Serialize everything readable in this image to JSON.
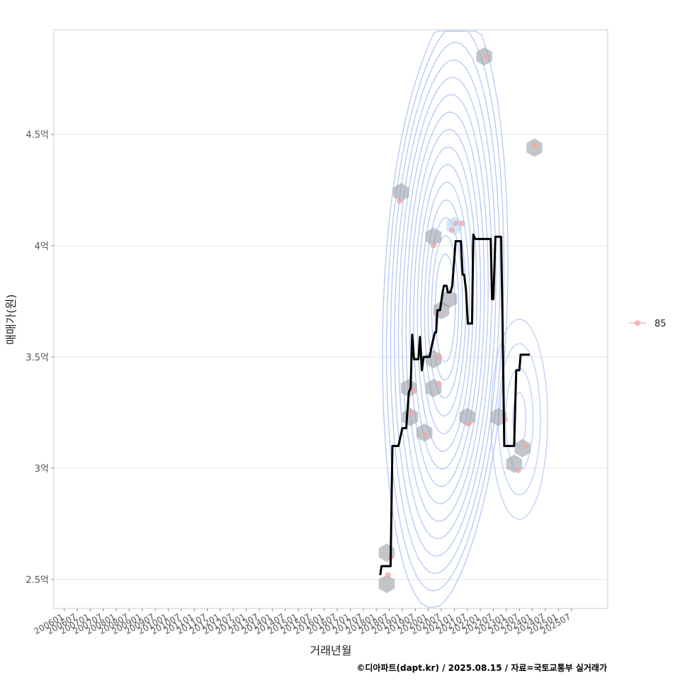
{
  "chart_data": {
    "type": "line",
    "title": "",
    "xlabel": "거래년월",
    "ylabel": "매매가(원)",
    "caption": "©디아파트(dapt.kr) / 2025.08.15 / 자료=국토교통부 실거래가",
    "xlim": [
      2005.6,
      2026.9
    ],
    "ylim": [
      2.37,
      4.97
    ],
    "x_tick_labels": [
      "200601",
      "200607",
      "200701",
      "200707",
      "200801",
      "200807",
      "200901",
      "200907",
      "201001",
      "201007",
      "201101",
      "201107",
      "201201",
      "201207",
      "201301",
      "201307",
      "201401",
      "201407",
      "201501",
      "201507",
      "201601",
      "201607",
      "201701",
      "201707",
      "201801",
      "201807",
      "201901",
      "201907",
      "202001",
      "202007",
      "202101",
      "202107",
      "202201",
      "202207",
      "202301",
      "202307",
      "202401",
      "202407",
      "202501",
      "202507"
    ],
    "y_ticks": [
      {
        "value": 2.5,
        "label": "2.5억"
      },
      {
        "value": 3.0,
        "label": "3억"
      },
      {
        "value": 3.5,
        "label": "3.5억"
      },
      {
        "value": 4.0,
        "label": "4억"
      },
      {
        "value": 4.5,
        "label": "4.5억"
      }
    ],
    "legend": {
      "position": "right",
      "entries": [
        {
          "name": "85",
          "color": "#f4a6a6"
        }
      ]
    },
    "colors": {
      "line": "#000000",
      "points": "#f4a6a6",
      "contour": "#a9bdf2",
      "hexbin": "#9aa0a8",
      "hex_highlight": "#b8dcf8",
      "grid": "#e4e4e4",
      "panel_border": "#cccccc"
    },
    "series": [
      {
        "name": "85 moving average",
        "type": "line",
        "points": [
          [
            2018.15,
            2.52
          ],
          [
            2018.2,
            2.56
          ],
          [
            2018.3,
            2.56
          ],
          [
            2018.45,
            2.56
          ],
          [
            2018.55,
            2.56
          ],
          [
            2018.62,
            3.1
          ],
          [
            2018.7,
            3.1
          ],
          [
            2018.85,
            3.1
          ],
          [
            2019.0,
            3.18
          ],
          [
            2019.15,
            3.18
          ],
          [
            2019.25,
            3.34
          ],
          [
            2019.32,
            3.36
          ],
          [
            2019.38,
            3.6
          ],
          [
            2019.45,
            3.49
          ],
          [
            2019.55,
            3.49
          ],
          [
            2019.62,
            3.49
          ],
          [
            2019.68,
            3.59
          ],
          [
            2019.75,
            3.44
          ],
          [
            2019.82,
            3.5
          ],
          [
            2019.9,
            3.5
          ],
          [
            2020.05,
            3.5
          ],
          [
            2020.15,
            3.56
          ],
          [
            2020.25,
            3.61
          ],
          [
            2020.3,
            3.61
          ],
          [
            2020.35,
            3.71
          ],
          [
            2020.45,
            3.71
          ],
          [
            2020.55,
            3.79
          ],
          [
            2020.6,
            3.82
          ],
          [
            2020.7,
            3.82
          ],
          [
            2020.75,
            3.79
          ],
          [
            2020.85,
            3.79
          ],
          [
            2020.92,
            3.82
          ],
          [
            2021.05,
            4.02
          ],
          [
            2021.15,
            4.02
          ],
          [
            2021.25,
            4.02
          ],
          [
            2021.32,
            3.87
          ],
          [
            2021.38,
            3.87
          ],
          [
            2021.45,
            3.8
          ],
          [
            2021.52,
            3.65
          ],
          [
            2021.6,
            3.65
          ],
          [
            2021.68,
            3.65
          ],
          [
            2021.73,
            4.05
          ],
          [
            2021.8,
            4.03
          ],
          [
            2022.0,
            4.03
          ],
          [
            2022.2,
            4.03
          ],
          [
            2022.4,
            4.03
          ],
          [
            2022.45,
            3.76
          ],
          [
            2022.5,
            3.76
          ],
          [
            2022.58,
            4.04
          ],
          [
            2022.7,
            4.04
          ],
          [
            2022.8,
            4.04
          ],
          [
            2022.85,
            3.7
          ],
          [
            2022.92,
            3.1
          ],
          [
            2023.05,
            3.1
          ],
          [
            2023.2,
            3.1
          ],
          [
            2023.3,
            3.1
          ],
          [
            2023.38,
            3.44
          ],
          [
            2023.5,
            3.44
          ],
          [
            2023.55,
            3.51
          ],
          [
            2023.7,
            3.51
          ],
          [
            2023.9,
            3.51
          ]
        ]
      },
      {
        "name": "85",
        "type": "scatter",
        "points": [
          [
            2018.45,
            2.52
          ],
          [
            2018.55,
            2.6
          ],
          [
            2018.9,
            4.2
          ],
          [
            2019.45,
            3.35
          ],
          [
            2019.35,
            3.25
          ],
          [
            2019.9,
            3.15
          ],
          [
            2020.2,
            4.0
          ],
          [
            2020.35,
            3.7
          ],
          [
            2020.4,
            3.5
          ],
          [
            2020.4,
            3.38
          ],
          [
            2020.9,
            4.07
          ],
          [
            2021.05,
            4.1
          ],
          [
            2021.3,
            4.1
          ],
          [
            2021.55,
            3.2
          ],
          [
            2022.2,
            4.85
          ],
          [
            2022.95,
            3.22
          ],
          [
            2023.45,
            2.99
          ],
          [
            2023.75,
            3.1
          ],
          [
            2024.1,
            4.45
          ]
        ]
      },
      {
        "name": "hexbin",
        "type": "hexbin",
        "points": [
          [
            2018.4,
            2.48
          ],
          [
            2018.4,
            2.62
          ],
          [
            2018.95,
            4.24
          ],
          [
            2019.25,
            3.36
          ],
          [
            2019.3,
            3.23
          ],
          [
            2019.85,
            3.16
          ],
          [
            2020.2,
            4.04
          ],
          [
            2020.2,
            3.49
          ],
          [
            2020.2,
            3.36
          ],
          [
            2020.5,
            3.71
          ],
          [
            2020.8,
            3.76
          ],
          [
            2021.0,
            4.09
          ],
          [
            2021.5,
            3.23
          ],
          [
            2022.15,
            4.85
          ],
          [
            2022.7,
            3.23
          ],
          [
            2023.3,
            3.02
          ],
          [
            2023.62,
            3.09
          ],
          [
            2024.08,
            4.44
          ]
        ]
      },
      {
        "name": "density contours",
        "type": "contour",
        "center": [
          2020.65,
          3.72
        ],
        "levels": 15
      }
    ]
  }
}
